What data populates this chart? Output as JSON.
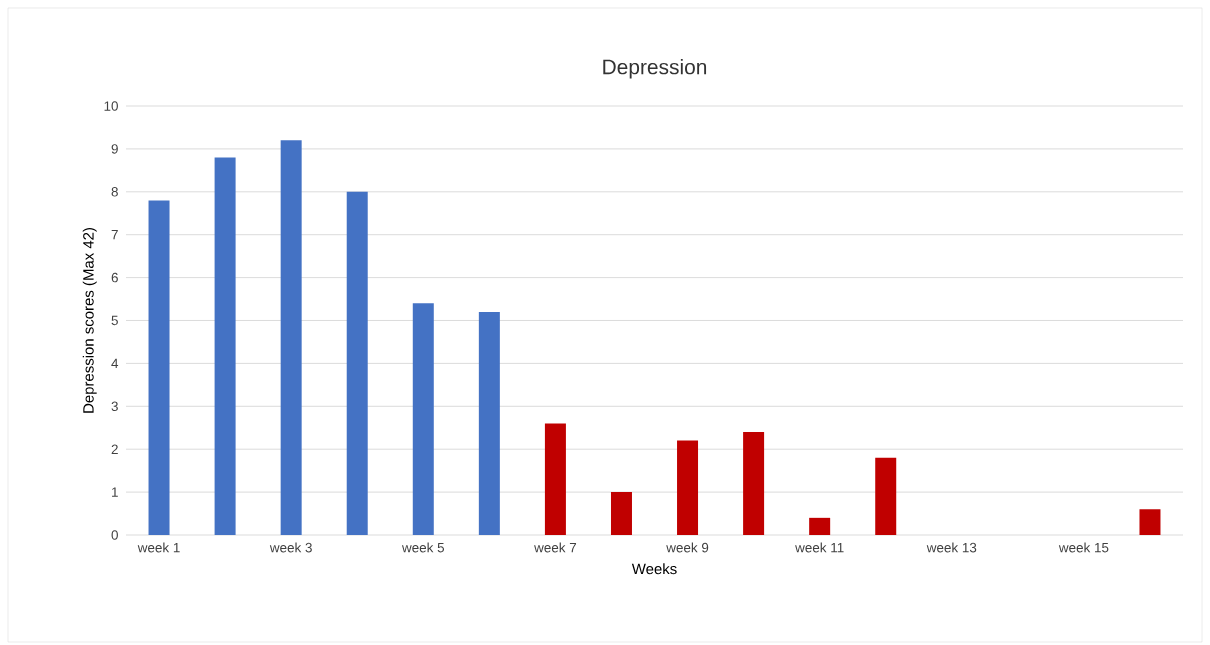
{
  "chart_data": {
    "type": "bar",
    "title": "Depression",
    "xlabel": "Weeks",
    "ylabel": "Depression  scores (Max 42)",
    "categories": [
      "week 1",
      null,
      "week 3",
      null,
      "week 5",
      null,
      "week 7",
      null,
      "week 9",
      null,
      "week 11",
      null,
      "week 13",
      null,
      "week 15",
      null
    ],
    "values": [
      7.8,
      8.8,
      9.2,
      8.0,
      5.4,
      5.2,
      2.6,
      1.0,
      2.2,
      2.4,
      0.4,
      1.8,
      null,
      null,
      null,
      0.6
    ],
    "colors": [
      "#4472c4",
      "#4472c4",
      "#4472c4",
      "#4472c4",
      "#4472c4",
      "#4472c4",
      "#c00000",
      "#c00000",
      "#c00000",
      "#c00000",
      "#c00000",
      "#c00000",
      "#c00000",
      "#c00000",
      "#c00000",
      "#c00000"
    ],
    "ylim": [
      0,
      10
    ],
    "yticks": [
      0,
      1,
      2,
      3,
      4,
      5,
      6,
      7,
      8,
      9,
      10
    ],
    "grid": "y"
  }
}
